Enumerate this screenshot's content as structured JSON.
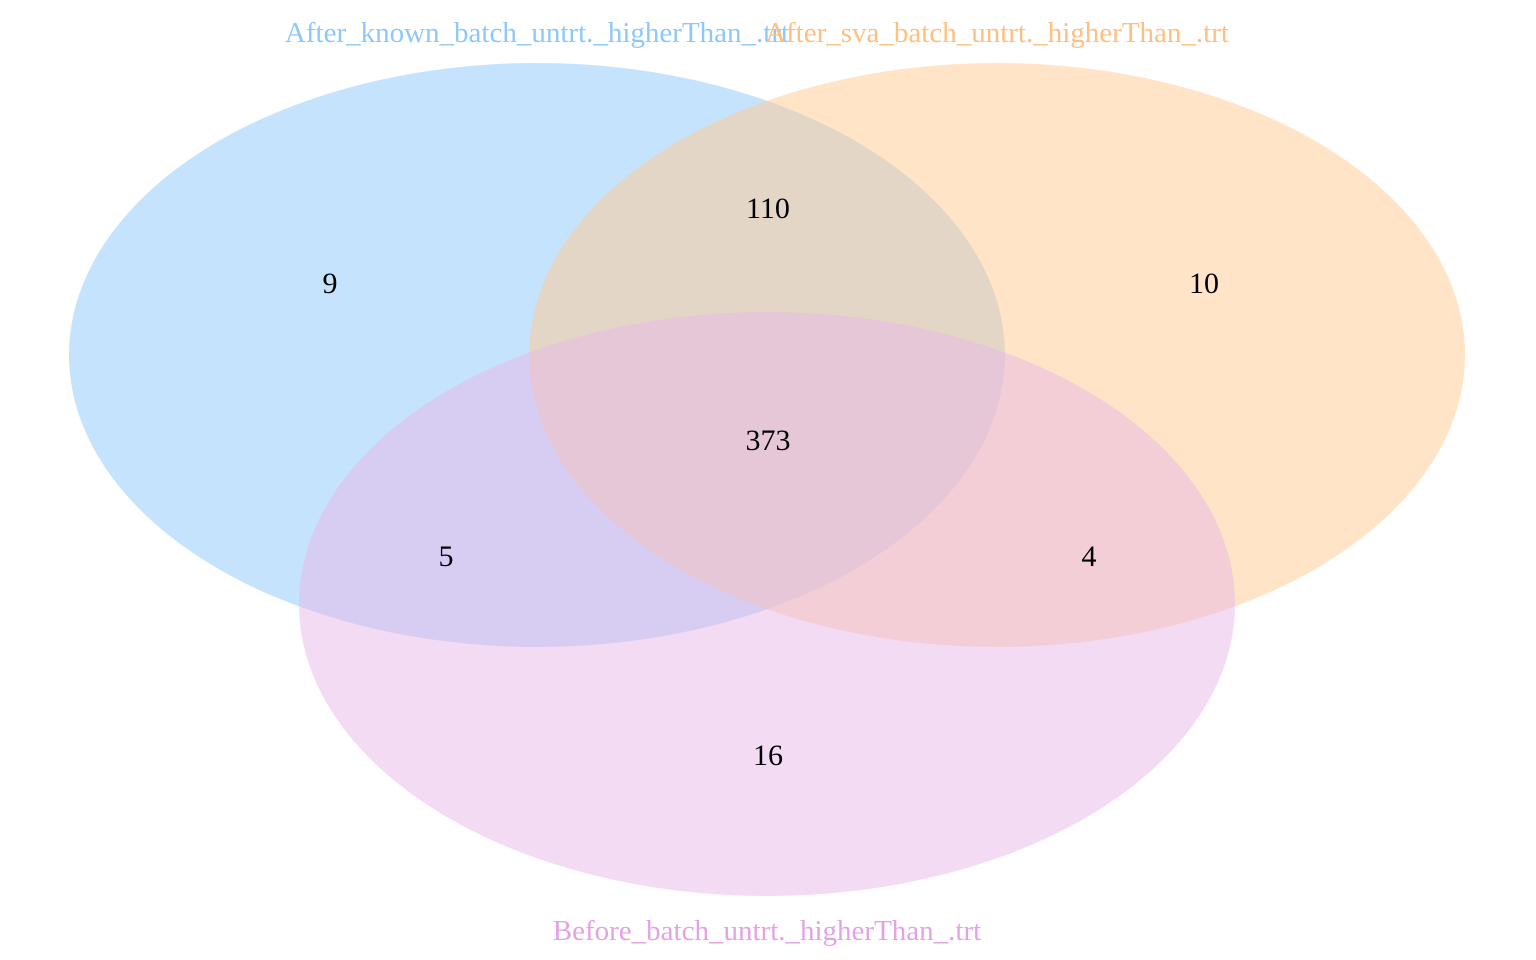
{
  "sets": [
    {
      "key": "known",
      "name": "After_known_batch_untrt._higherThan_.trt",
      "color": "#8ec8fb",
      "label_color": "#8ec8fb"
    },
    {
      "key": "sva",
      "name": "After_sva_batch_untrt._higherThan_.trt",
      "color": "#ffc98f",
      "label_color": "#ffbf80"
    },
    {
      "key": "before",
      "name": "Before_batch_untrt._higherThan_.trt",
      "color": "#e8b8e8",
      "label_color": "#e3a3e3"
    }
  ],
  "regions": [
    {
      "id": "known-only",
      "sets": [
        "known"
      ],
      "count": "9"
    },
    {
      "id": "sva-only",
      "sets": [
        "sva"
      ],
      "count": "10"
    },
    {
      "id": "known-sva",
      "sets": [
        "known",
        "sva"
      ],
      "count": "110"
    },
    {
      "id": "all-three",
      "sets": [
        "known",
        "sva",
        "before"
      ],
      "count": "373"
    },
    {
      "id": "known-before",
      "sets": [
        "known",
        "before"
      ],
      "count": "5"
    },
    {
      "id": "sva-before",
      "sets": [
        "sva",
        "before"
      ],
      "count": "4"
    },
    {
      "id": "before-only",
      "sets": [
        "before"
      ],
      "count": "16"
    }
  ]
}
